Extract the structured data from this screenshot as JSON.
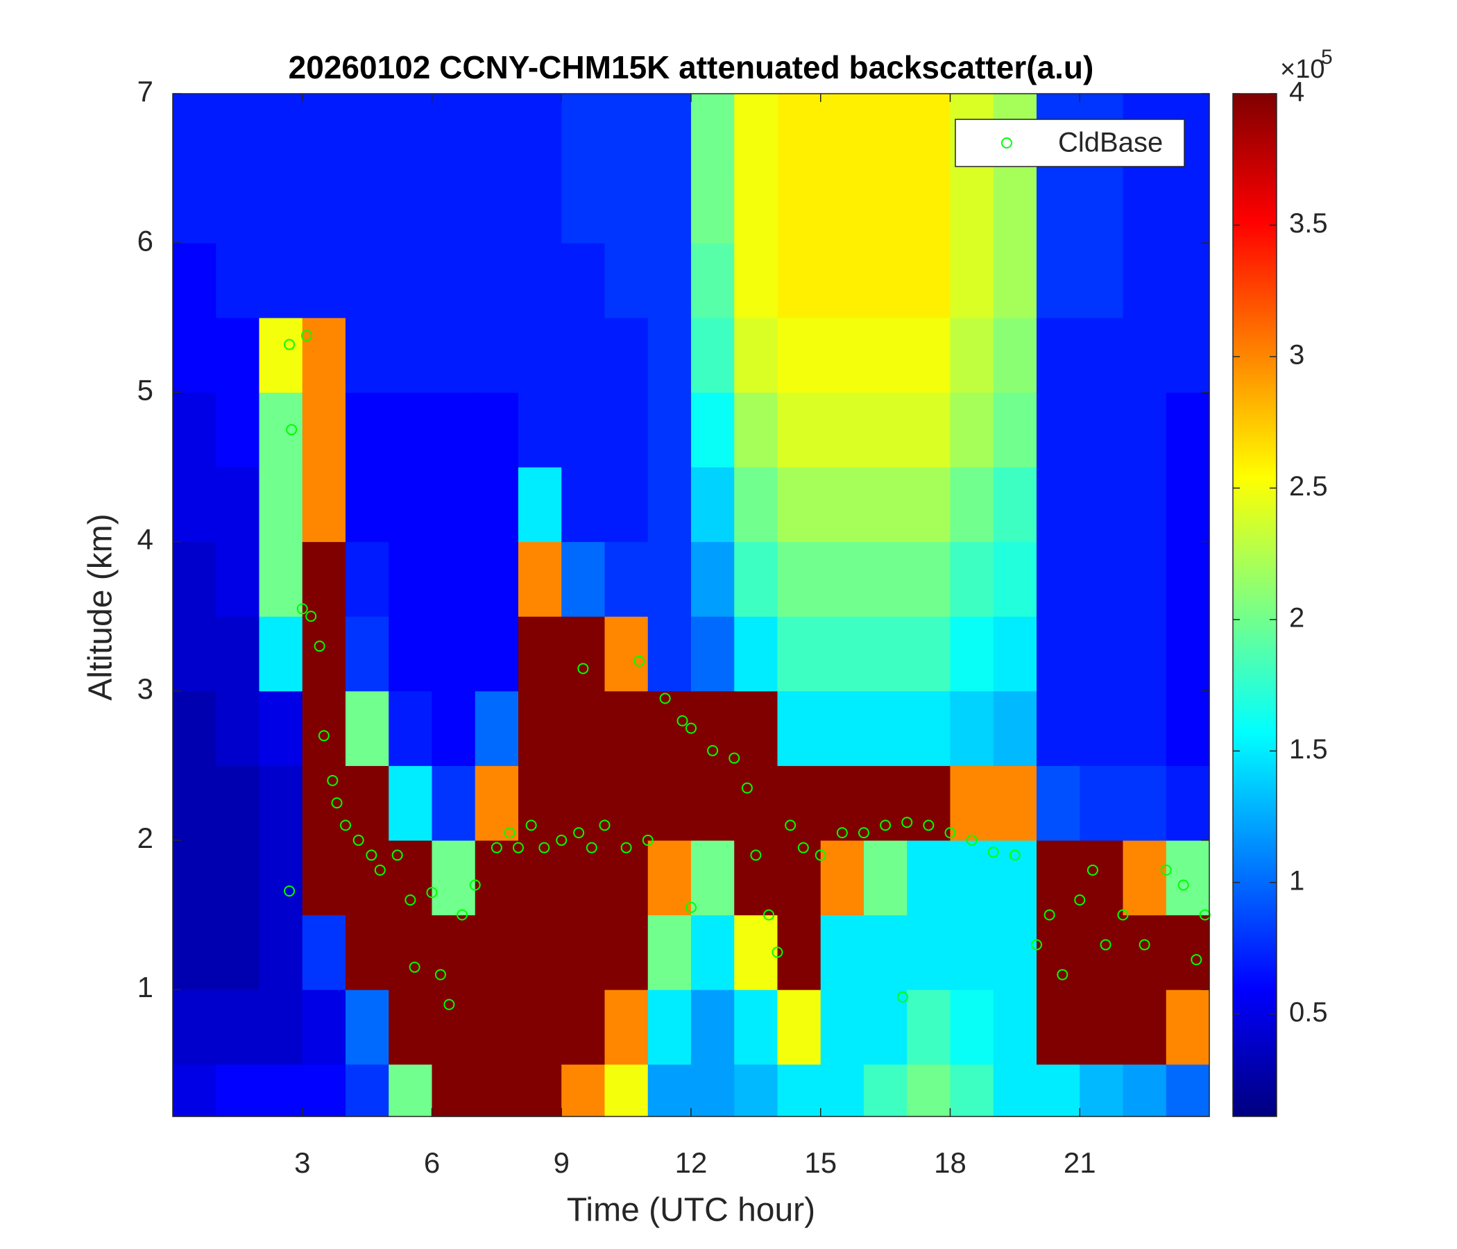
{
  "chart_data": {
    "type": "heatmap",
    "title": "20260102 CCNY-CHM15K attenuated backscatter(a.u)",
    "x_label": "Time (UTC hour)",
    "y_label": "Altitude (km)",
    "xlim": [
      0,
      24
    ],
    "ylim": [
      0.15,
      7
    ],
    "xticks": [
      3,
      6,
      9,
      12,
      15,
      18,
      21
    ],
    "yticks": [
      1,
      2,
      3,
      4,
      5,
      6,
      7
    ],
    "x_edges": [
      0,
      1,
      2,
      3,
      4,
      5,
      6,
      7,
      8,
      9,
      10,
      11,
      12,
      13,
      14,
      15,
      16,
      17,
      18,
      19,
      20,
      21,
      22,
      23,
      24
    ],
    "y_edges": [
      0.15,
      0.5,
      1,
      1.5,
      2,
      2.5,
      3,
      3.5,
      4,
      4.5,
      5,
      5.5,
      6,
      6.5,
      7
    ],
    "values": [
      [
        0.5,
        0.4,
        0.3,
        0.3,
        0.3,
        0.3,
        0.4,
        0.4,
        0.5,
        0.5,
        0.6,
        0.6,
        0.7,
        0.7
      ],
      [
        0.6,
        0.4,
        0.3,
        0.3,
        0.3,
        0.4,
        0.4,
        0.5,
        0.5,
        0.6,
        0.6,
        0.7,
        0.7,
        0.7
      ],
      [
        0.6,
        0.4,
        0.4,
        0.4,
        0.4,
        0.5,
        1.5,
        2,
        2,
        2,
        2.5,
        0.7,
        0.7,
        0.7
      ],
      [
        0.6,
        0.5,
        0.8,
        4,
        4,
        4,
        4,
        4,
        3,
        3,
        3,
        0.7,
        0.7,
        0.7
      ],
      [
        0.8,
        1,
        4,
        4,
        4,
        2,
        0.8,
        0.7,
        0.6,
        0.6,
        0.7,
        0.7,
        0.7,
        0.7
      ],
      [
        2,
        4,
        4,
        4,
        1.5,
        0.7,
        0.6,
        0.6,
        0.6,
        0.6,
        0.7,
        0.7,
        0.7,
        0.7
      ],
      [
        4,
        4,
        4,
        2,
        0.8,
        0.6,
        0.6,
        0.6,
        0.6,
        0.6,
        0.7,
        0.7,
        0.7,
        0.7
      ],
      [
        4,
        4,
        4,
        4,
        3,
        1,
        0.6,
        0.6,
        0.6,
        0.6,
        0.7,
        0.7,
        0.7,
        0.7
      ],
      [
        4,
        4,
        4,
        4,
        4,
        4,
        4,
        3,
        1.5,
        0.7,
        0.7,
        0.7,
        0.7,
        0.7
      ],
      [
        3,
        4,
        4,
        4,
        4,
        4,
        4,
        1,
        0.7,
        0.7,
        0.7,
        0.7,
        0.8,
        0.8
      ],
      [
        2.5,
        3,
        4,
        4,
        4,
        4,
        3,
        0.8,
        0.7,
        0.7,
        0.7,
        0.8,
        0.8,
        0.8
      ],
      [
        1.2,
        1.5,
        2,
        3,
        4,
        4,
        0.8,
        0.8,
        0.8,
        0.8,
        0.8,
        0.8,
        0.8,
        0.8
      ],
      [
        1.2,
        1.2,
        1.5,
        2,
        4,
        4,
        1,
        1.2,
        1.4,
        1.6,
        1.8,
        1.9,
        2,
        2
      ],
      [
        1.3,
        1.5,
        2.5,
        4,
        4,
        4,
        1.5,
        1.8,
        2,
        2.2,
        2.4,
        2.5,
        2.5,
        2.5
      ],
      [
        1.5,
        2.5,
        4,
        4,
        4,
        1.5,
        1.8,
        2,
        2.2,
        2.4,
        2.5,
        2.6,
        2.6,
        2.6
      ],
      [
        1.5,
        1.5,
        1.5,
        3,
        4,
        1.5,
        1.8,
        2,
        2.2,
        2.4,
        2.5,
        2.6,
        2.6,
        2.6
      ],
      [
        1.8,
        1.5,
        1.5,
        2,
        4,
        1.5,
        1.8,
        2,
        2.2,
        2.4,
        2.5,
        2.6,
        2.6,
        2.6
      ],
      [
        2,
        1.8,
        1.5,
        1.5,
        4,
        1.5,
        1.8,
        2,
        2.2,
        2.4,
        2.5,
        2.6,
        2.6,
        2.6
      ],
      [
        1.8,
        1.6,
        1.5,
        1.5,
        3,
        1.4,
        1.6,
        1.8,
        2,
        2.2,
        2.3,
        2.4,
        2.4,
        2.4
      ],
      [
        1.5,
        1.5,
        1.5,
        1.5,
        3,
        1.3,
        1.5,
        1.7,
        1.8,
        2,
        2.1,
        2.2,
        2.2,
        2.2
      ],
      [
        1.5,
        4,
        4,
        4,
        0.9,
        0.7,
        0.7,
        0.7,
        0.7,
        0.7,
        0.7,
        0.8,
        0.8,
        0.8
      ],
      [
        1.3,
        4,
        4,
        4,
        0.8,
        0.7,
        0.7,
        0.7,
        0.7,
        0.7,
        0.7,
        0.8,
        0.8,
        0.8
      ],
      [
        1.2,
        4,
        4,
        3,
        0.8,
        0.7,
        0.7,
        0.7,
        0.7,
        0.7,
        0.7,
        0.7,
        0.7,
        0.7
      ],
      [
        1,
        3,
        4,
        2,
        0.7,
        0.6,
        0.6,
        0.6,
        0.6,
        0.6,
        0.7,
        0.7,
        0.7,
        0.7
      ]
    ],
    "colorbar": {
      "lim": [
        0.11,
        4
      ],
      "ticks": [
        0.5,
        1,
        1.5,
        2,
        2.5,
        3,
        3.5,
        4
      ],
      "scale_base": "×10",
      "scale_exponent": "5"
    },
    "legend": "northeast",
    "series": [
      {
        "name": "CldBase",
        "color": "#00ff00",
        "x": [
          2.7,
          2.75,
          2.7,
          3.1,
          3.0,
          3.2,
          3.4,
          3.5,
          3.7,
          3.8,
          4.0,
          4.3,
          4.6,
          4.8,
          5.2,
          5.5,
          5.6,
          6.0,
          6.2,
          6.4,
          6.7,
          7.0,
          7.5,
          7.8,
          8.0,
          8.3,
          8.6,
          9.0,
          9.4,
          9.5,
          9.7,
          10.0,
          10.5,
          10.8,
          11.0,
          11.4,
          11.8,
          12.0,
          12.5,
          13.0,
          13.3,
          13.5,
          13.8,
          14.0,
          14.3,
          14.6,
          15.0,
          15.5,
          16.0,
          16.5,
          17.0,
          17.5,
          18.0,
          18.5,
          19.0,
          19.5,
          20.0,
          20.3,
          20.6,
          21.0,
          21.3,
          21.6,
          22.0,
          22.5,
          23.0,
          23.4,
          23.7,
          23.9,
          16.9,
          12.0
        ],
        "values": [
          5.32,
          4.75,
          1.66,
          5.38,
          3.55,
          3.5,
          3.3,
          2.7,
          2.4,
          2.25,
          2.1,
          2.0,
          1.9,
          1.8,
          1.9,
          1.6,
          1.15,
          1.65,
          1.1,
          0.9,
          1.5,
          1.7,
          1.95,
          2.05,
          1.95,
          2.1,
          1.95,
          2.0,
          2.05,
          3.15,
          1.95,
          2.1,
          1.95,
          3.2,
          2.0,
          2.95,
          2.8,
          2.75,
          2.6,
          2.55,
          2.35,
          1.9,
          1.5,
          1.25,
          2.1,
          1.95,
          1.9,
          2.05,
          2.05,
          2.1,
          2.12,
          2.1,
          2.05,
          2.0,
          1.92,
          1.9,
          1.3,
          1.5,
          1.1,
          1.6,
          1.8,
          1.3,
          1.5,
          1.3,
          1.8,
          1.7,
          1.2,
          1.5,
          0.95,
          1.55
        ]
      }
    ]
  }
}
